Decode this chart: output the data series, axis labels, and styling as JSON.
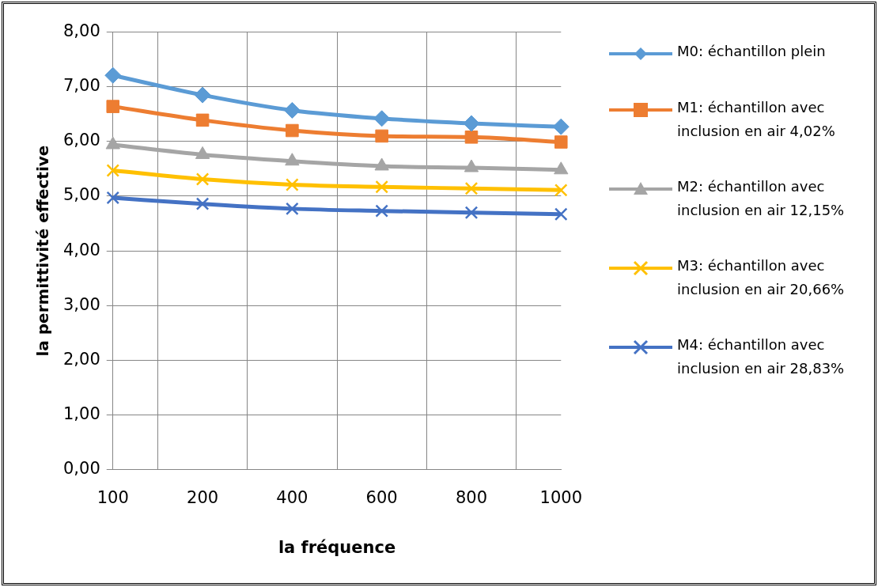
{
  "chart_data": {
    "type": "line",
    "xlabel": "la fréquence",
    "ylabel": "la permittivité effective",
    "categories": [
      "100",
      "200",
      "400",
      "600",
      "800",
      "1000"
    ],
    "ylim": [
      0,
      8
    ],
    "yticks": [
      {
        "value": 0,
        "label": "0,00"
      },
      {
        "value": 1,
        "label": "1,00"
      },
      {
        "value": 2,
        "label": "2,00"
      },
      {
        "value": 3,
        "label": "3,00"
      },
      {
        "value": 4,
        "label": "4,00"
      },
      {
        "value": 5,
        "label": "5,00"
      },
      {
        "value": 6,
        "label": "6,00"
      },
      {
        "value": 7,
        "label": "7,00"
      },
      {
        "value": 8,
        "label": "8,00"
      }
    ],
    "grid": true,
    "legend": "right",
    "series": [
      {
        "name": "M0: échantillon plein",
        "color": "#5b9bd5",
        "marker": "diamond",
        "values": [
          7.21,
          6.85,
          6.57,
          6.42,
          6.33,
          6.27
        ]
      },
      {
        "name": "M1: échantillon avec inclusion en air 4,02%",
        "color": "#ed7d31",
        "marker": "square",
        "values": [
          6.64,
          6.39,
          6.2,
          6.1,
          6.08,
          5.99
        ]
      },
      {
        "name": "M2: échantillon avec inclusion en air 12,15%",
        "color": "#a5a5a5",
        "marker": "triangle",
        "values": [
          5.94,
          5.76,
          5.64,
          5.55,
          5.52,
          5.48
        ]
      },
      {
        "name": "M3: échantillon avec inclusion en air 20,66%",
        "color": "#ffc000",
        "marker": "cross",
        "values": [
          5.47,
          5.31,
          5.21,
          5.17,
          5.14,
          5.11
        ]
      },
      {
        "name": "M4: échantillon avec inclusion en air 28,83%",
        "color": "#4472c4",
        "marker": "cross",
        "values": [
          4.97,
          4.86,
          4.77,
          4.73,
          4.7,
          4.67
        ]
      }
    ]
  }
}
